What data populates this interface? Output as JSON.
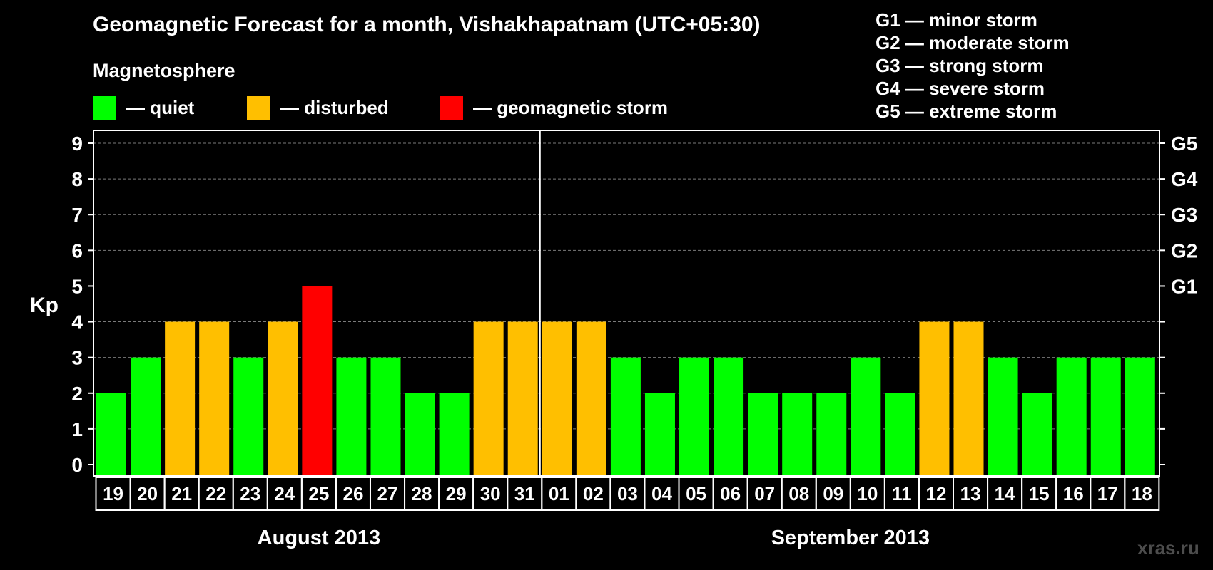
{
  "title": "Geomagnetic Forecast for a month, Vishakhapatnam (UTC+05:30)",
  "subtitle": "Magnetosphere",
  "legend": [
    {
      "label": "— quiet",
      "color": "#00ff00"
    },
    {
      "label": "— disturbed",
      "color": "#ffbf00"
    },
    {
      "label": "— geomagnetic storm",
      "color": "#ff0000"
    }
  ],
  "storm_levels": [
    "G1 — minor storm",
    "G2 — moderate storm",
    "G3 — strong storm",
    "G4 — severe storm",
    "G5 — extreme storm"
  ],
  "watermark": "xras.ru",
  "chart_data": {
    "type": "bar",
    "title": "Geomagnetic Forecast for a month, Vishakhapatnam (UTC+05:30)",
    "ylabel": "Kp",
    "ylim": [
      0,
      9
    ],
    "yticks": [
      "0",
      "1",
      "2",
      "3",
      "4",
      "5",
      "6",
      "7",
      "8",
      "9"
    ],
    "right_axis_labels": [
      {
        "kp": 5,
        "label": "G1"
      },
      {
        "kp": 6,
        "label": "G2"
      },
      {
        "kp": 7,
        "label": "G3"
      },
      {
        "kp": 8,
        "label": "G4"
      },
      {
        "kp": 9,
        "label": "G5"
      }
    ],
    "months": [
      {
        "label": "August 2013",
        "start": 0,
        "end": 12
      },
      {
        "label": "September 2013",
        "start": 13,
        "end": 30
      }
    ],
    "categories": [
      "19",
      "20",
      "21",
      "22",
      "23",
      "24",
      "25",
      "26",
      "27",
      "28",
      "29",
      "30",
      "31",
      "01",
      "02",
      "03",
      "04",
      "05",
      "06",
      "07",
      "08",
      "09",
      "10",
      "11",
      "12",
      "13",
      "14",
      "15",
      "16",
      "17",
      "18"
    ],
    "values": [
      2,
      3,
      4,
      4,
      3,
      4,
      5,
      3,
      3,
      2,
      2,
      4,
      4,
      4,
      4,
      3,
      2,
      3,
      3,
      2,
      2,
      2,
      3,
      2,
      4,
      4,
      3,
      2,
      3,
      3,
      3
    ],
    "colors": {
      "quiet": "#00ff00",
      "disturbed": "#ffbf00",
      "storm": "#ff0000"
    }
  }
}
